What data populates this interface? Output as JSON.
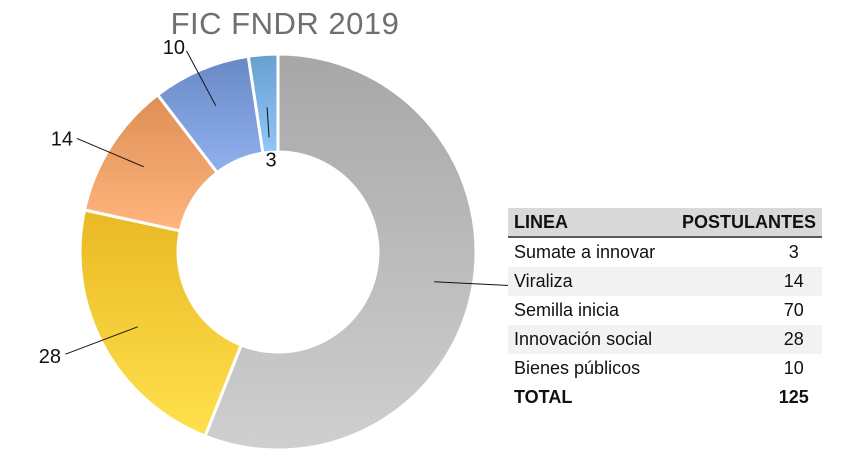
{
  "chart_data": {
    "type": "pie",
    "title": "FIC FNDR 2019",
    "hole": true,
    "slices": [
      {
        "label": "Semilla inicia",
        "value": 70,
        "color": "#bdbdbd"
      },
      {
        "label": "Innovación social",
        "value": 28,
        "color": "#ffcf3a"
      },
      {
        "label": "Viraliza",
        "value": 14,
        "color": "#f3a46b"
      },
      {
        "label": "Bienes públicos",
        "value": 10,
        "color": "#7f9fdc"
      },
      {
        "label": "Sumate a innovar",
        "value": 3,
        "color": "#7fb5e6"
      }
    ]
  },
  "table": {
    "headers": [
      "LINEA",
      "POSTULANTES"
    ],
    "rows": [
      {
        "linea": "Sumate a innovar",
        "postulantes": "3"
      },
      {
        "linea": "Viraliza",
        "postulantes": "14"
      },
      {
        "linea": "Semilla inicia",
        "postulantes": "70"
      },
      {
        "linea": "Innovación social",
        "postulantes": "28"
      },
      {
        "linea": "Bienes públicos",
        "postulantes": "10"
      }
    ],
    "total_label": "TOTAL",
    "total_value": "125"
  }
}
